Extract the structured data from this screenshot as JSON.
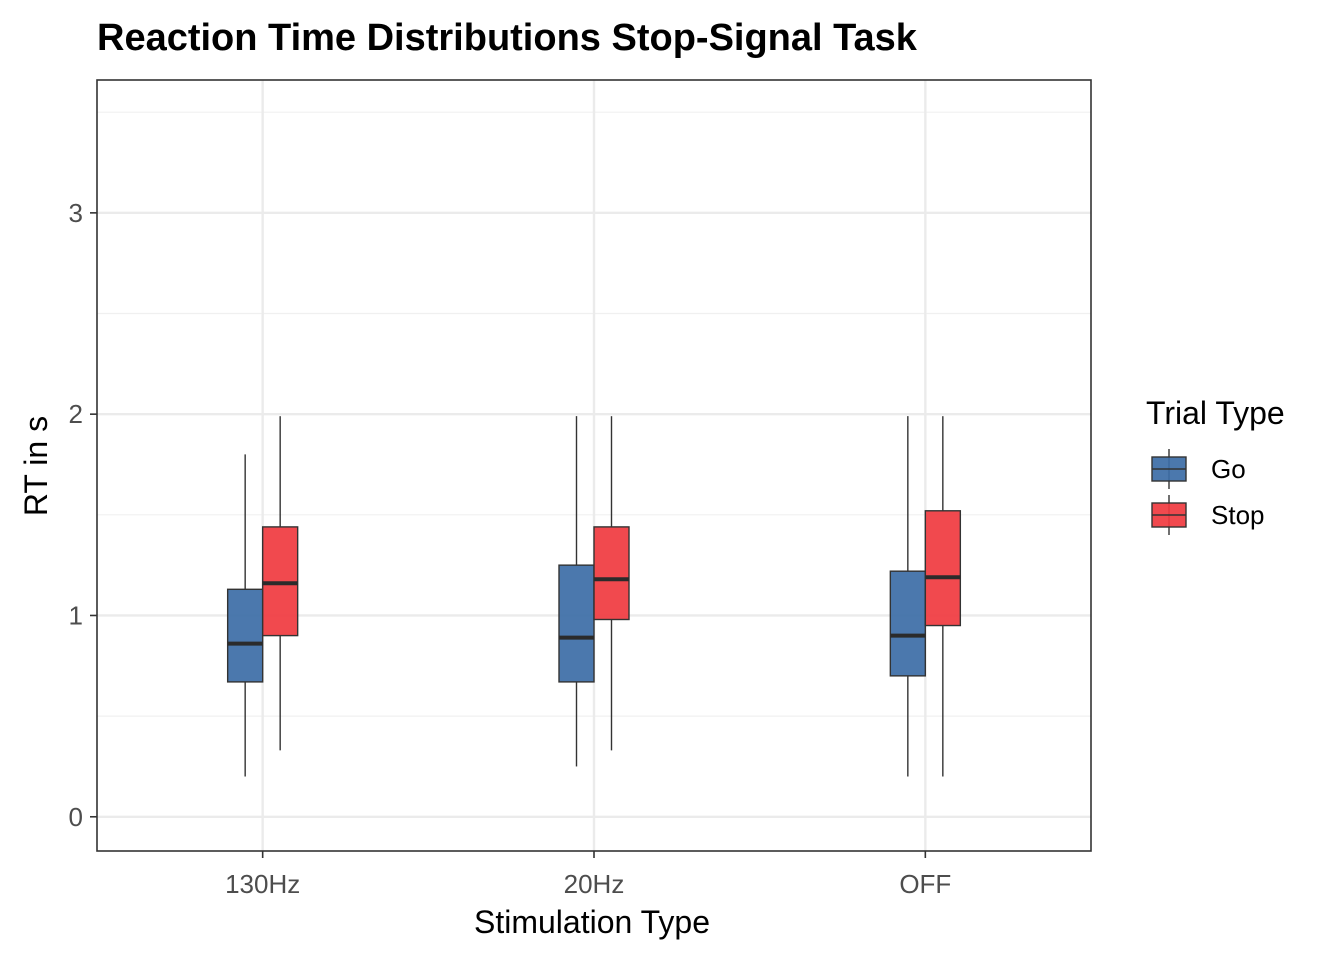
{
  "chart_data": {
    "type": "boxplot",
    "title": "Reaction Time Distributions Stop-Signal Task",
    "xlabel": "Stimulation Type",
    "ylabel": "RT in s",
    "categories": [
      "130Hz",
      "20Hz",
      "OFF"
    ],
    "ylim": [
      -0.17,
      3.66
    ],
    "yticks": [
      0,
      1,
      2,
      3
    ],
    "grid": true,
    "legend": {
      "title": "Trial Type",
      "position": "right"
    },
    "series": [
      {
        "name": "Go",
        "color": "#3C6DA6",
        "boxes": [
          {
            "category": "130Hz",
            "min": 0.2,
            "q1": 0.67,
            "median": 0.86,
            "q3": 1.13,
            "max": 1.8
          },
          {
            "category": "20Hz",
            "min": 0.25,
            "q1": 0.67,
            "median": 0.89,
            "q3": 1.25,
            "max": 1.99
          },
          {
            "category": "OFF",
            "min": 0.2,
            "q1": 0.7,
            "median": 0.9,
            "q3": 1.22,
            "max": 1.99
          }
        ]
      },
      {
        "name": "Stop",
        "color": "#F03A3F",
        "boxes": [
          {
            "category": "130Hz",
            "min": 0.33,
            "q1": 0.9,
            "median": 1.16,
            "q3": 1.44,
            "max": 1.99
          },
          {
            "category": "20Hz",
            "min": 0.33,
            "q1": 0.98,
            "median": 1.18,
            "q3": 1.44,
            "max": 1.99
          },
          {
            "category": "OFF",
            "min": 0.2,
            "q1": 0.95,
            "median": 1.19,
            "q3": 1.52,
            "max": 1.99
          }
        ]
      }
    ]
  }
}
